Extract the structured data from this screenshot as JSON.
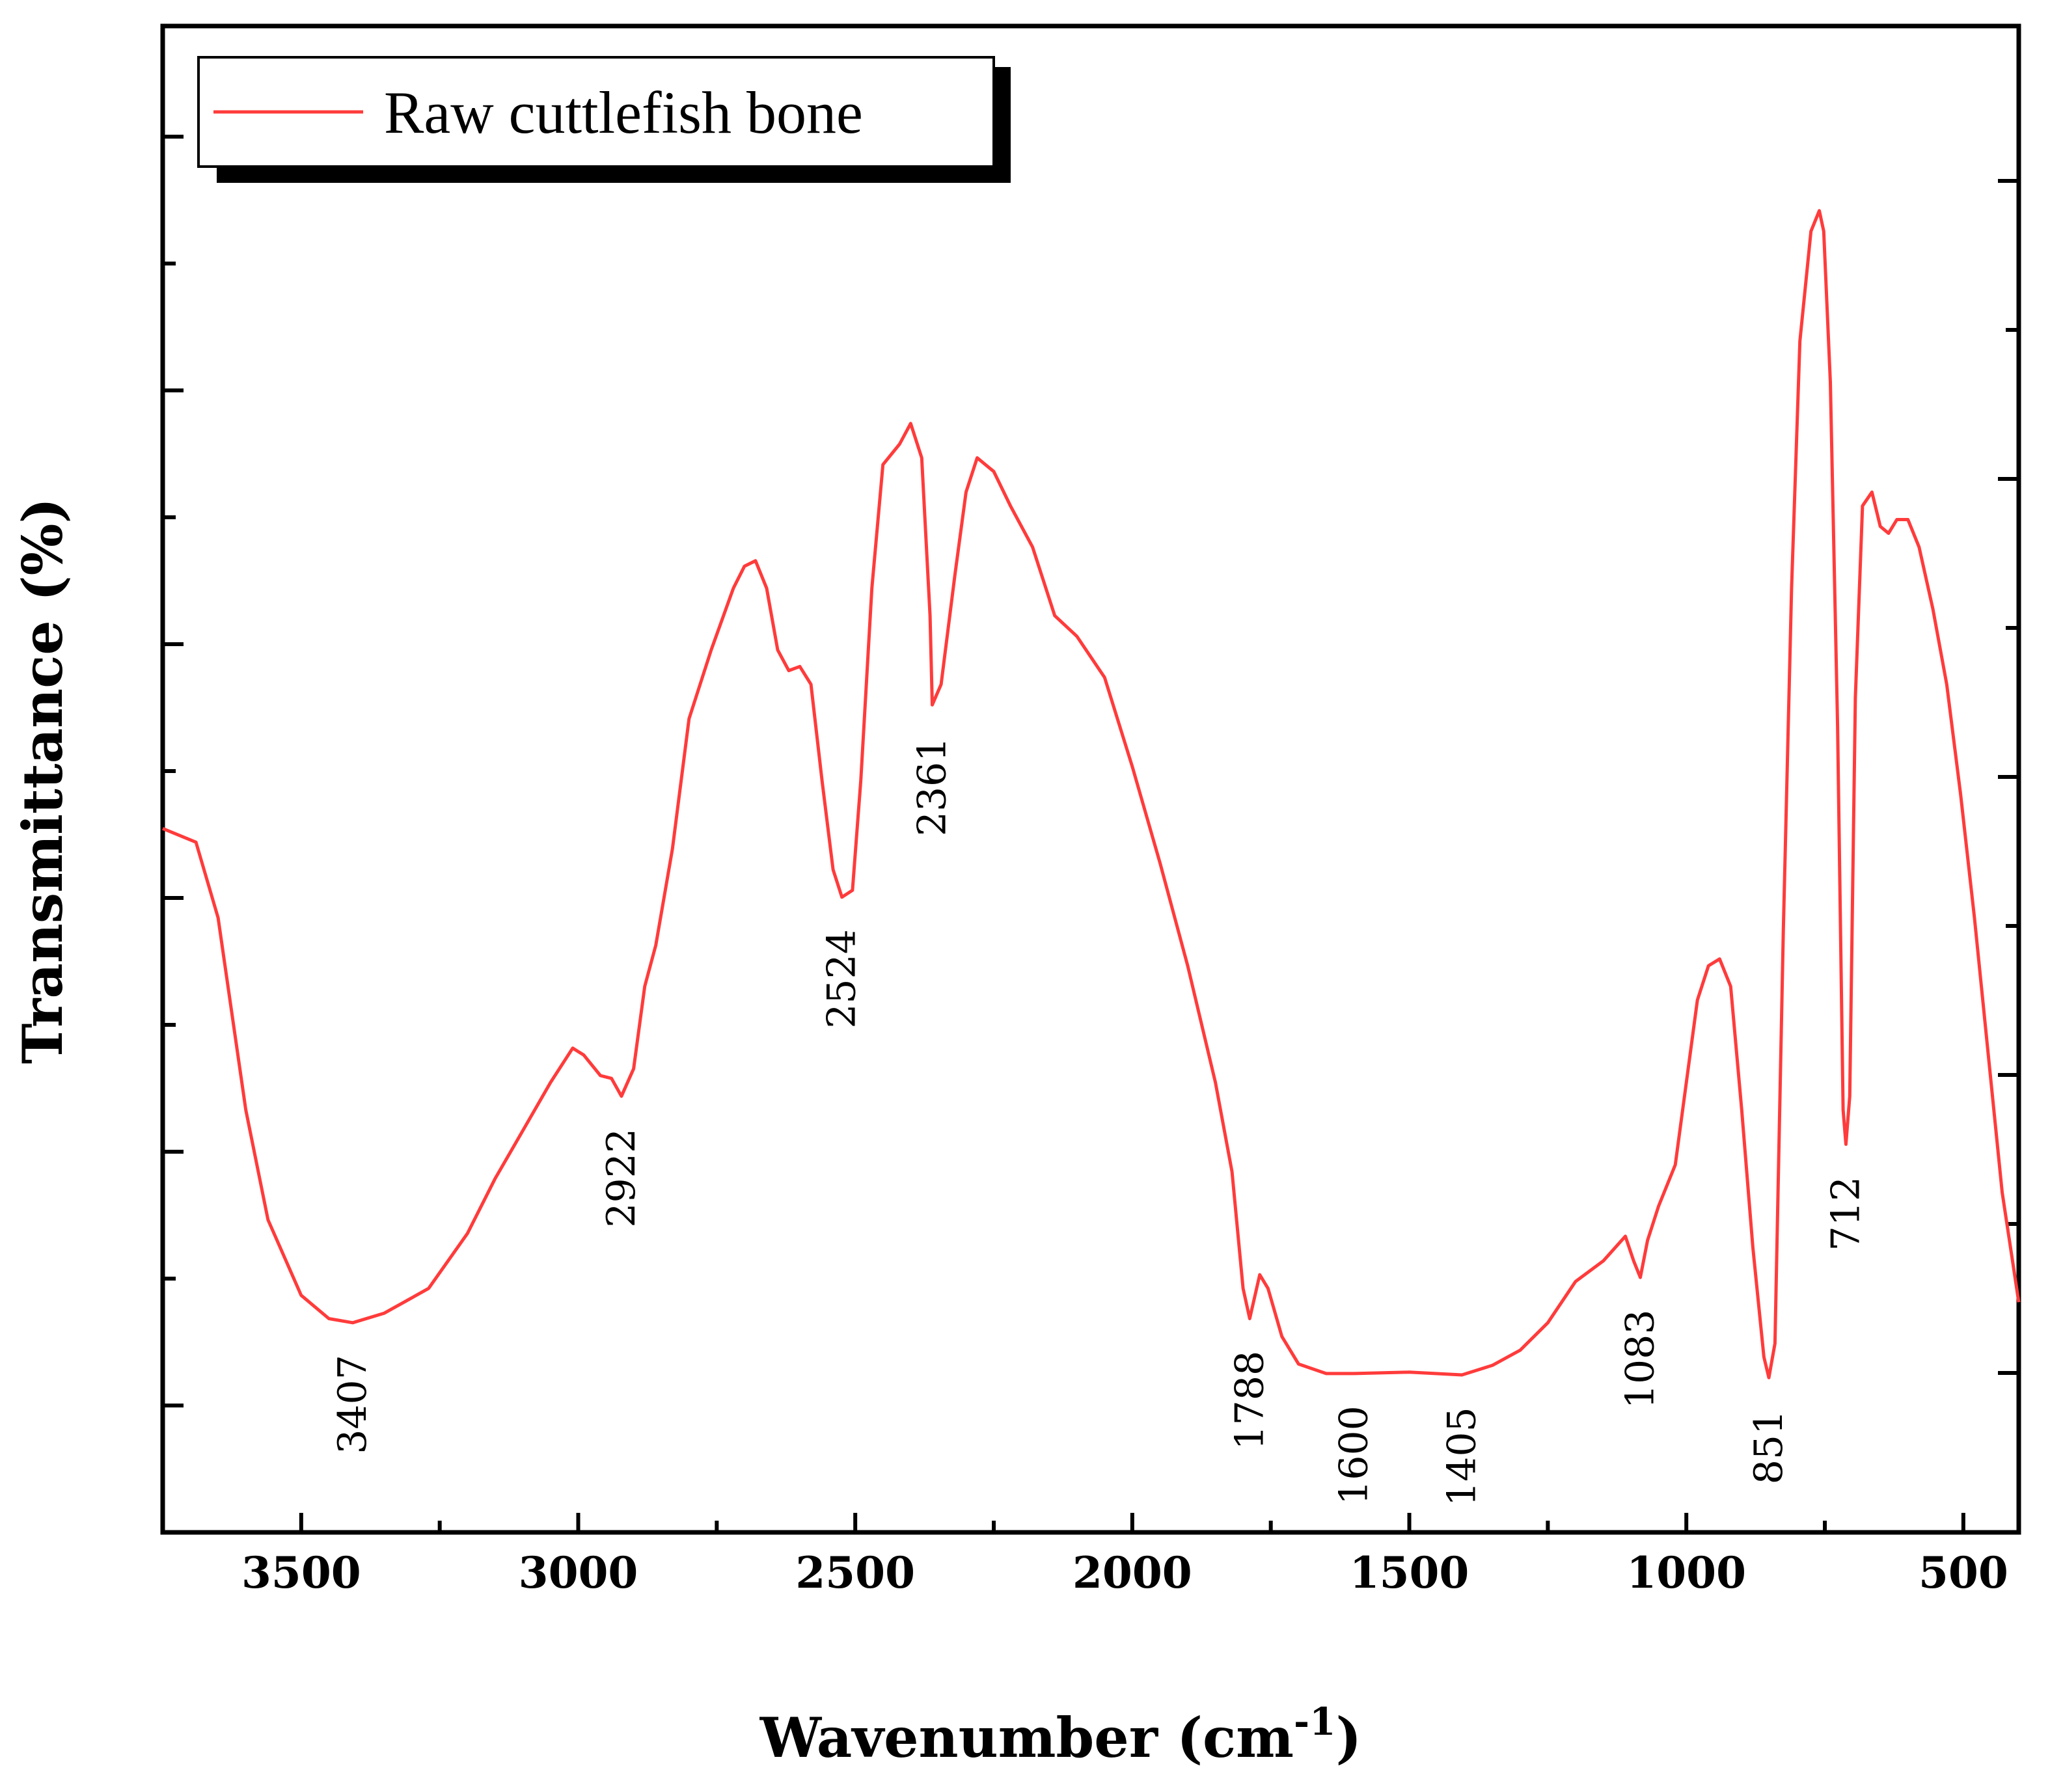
{
  "chart_data": {
    "type": "line",
    "title": "",
    "xlabel": "Wavenumber (cm",
    "xlabel_sup": "-1",
    "xlabel_close": ")",
    "ylabel": "Transmittance (%)",
    "xlim": [
      3750,
      400
    ],
    "ylim": [
      0,
      100
    ],
    "x_reversed": true,
    "grid": false,
    "legend_position": "top-left",
    "x_ticks": [
      {
        "value": 3500,
        "label": "3500"
      },
      {
        "value": 3000,
        "label": "3000"
      },
      {
        "value": 2500,
        "label": "2500"
      },
      {
        "value": 2000,
        "label": "2000"
      },
      {
        "value": 1500,
        "label": "1500"
      },
      {
        "value": 1000,
        "label": "1000"
      },
      {
        "value": 500,
        "label": "500"
      }
    ],
    "series": [
      {
        "name": "Raw cuttlefish bone",
        "color": "#ff3b3b",
        "points": [
          [
            3750,
            42.5
          ],
          [
            3690,
            41.5
          ],
          [
            3650,
            36
          ],
          [
            3600,
            22
          ],
          [
            3560,
            14
          ],
          [
            3500,
            8.5
          ],
          [
            3450,
            6.8
          ],
          [
            3407,
            6.5
          ],
          [
            3350,
            7.2
          ],
          [
            3270,
            9
          ],
          [
            3200,
            13
          ],
          [
            3150,
            17
          ],
          [
            3100,
            20.5
          ],
          [
            3050,
            24
          ],
          [
            3010,
            26.5
          ],
          [
            2990,
            26
          ],
          [
            2960,
            24.5
          ],
          [
            2940,
            24.3
          ],
          [
            2922,
            23
          ],
          [
            2900,
            25
          ],
          [
            2880,
            31
          ],
          [
            2860,
            34
          ],
          [
            2830,
            41
          ],
          [
            2800,
            50.5
          ],
          [
            2760,
            55.5
          ],
          [
            2720,
            60
          ],
          [
            2700,
            61.6
          ],
          [
            2680,
            62
          ],
          [
            2660,
            60
          ],
          [
            2640,
            55.5
          ],
          [
            2620,
            54
          ],
          [
            2600,
            54.3
          ],
          [
            2580,
            53
          ],
          [
            2560,
            46
          ],
          [
            2540,
            39.5
          ],
          [
            2524,
            37.5
          ],
          [
            2505,
            38
          ],
          [
            2490,
            46
          ],
          [
            2470,
            60
          ],
          [
            2450,
            69
          ],
          [
            2420,
            70.5
          ],
          [
            2400,
            72
          ],
          [
            2380,
            69.5
          ],
          [
            2365,
            58
          ],
          [
            2361,
            51.5
          ],
          [
            2345,
            53
          ],
          [
            2320,
            61
          ],
          [
            2300,
            67
          ],
          [
            2280,
            69.5
          ],
          [
            2250,
            68.5
          ],
          [
            2220,
            66
          ],
          [
            2180,
            63
          ],
          [
            2140,
            58
          ],
          [
            2100,
            56.5
          ],
          [
            2050,
            53.5
          ],
          [
            2000,
            47
          ],
          [
            1950,
            40
          ],
          [
            1900,
            32.5
          ],
          [
            1850,
            24
          ],
          [
            1820,
            17.5
          ],
          [
            1800,
            9
          ],
          [
            1788,
            6.8
          ],
          [
            1770,
            10
          ],
          [
            1755,
            9
          ],
          [
            1730,
            5.5
          ],
          [
            1700,
            3.5
          ],
          [
            1650,
            2.8
          ],
          [
            1600,
            2.8
          ],
          [
            1500,
            2.9
          ],
          [
            1405,
            2.7
          ],
          [
            1350,
            3.4
          ],
          [
            1300,
            4.5
          ],
          [
            1250,
            6.5
          ],
          [
            1200,
            9.5
          ],
          [
            1150,
            11
          ],
          [
            1110,
            12.8
          ],
          [
            1095,
            11
          ],
          [
            1083,
            9.8
          ],
          [
            1070,
            12.5
          ],
          [
            1050,
            15
          ],
          [
            1020,
            18
          ],
          [
            1000,
            24
          ],
          [
            980,
            30
          ],
          [
            960,
            32.5
          ],
          [
            940,
            33
          ],
          [
            920,
            31
          ],
          [
            900,
            22
          ],
          [
            880,
            12
          ],
          [
            860,
            4
          ],
          [
            851,
            2.5
          ],
          [
            840,
            5
          ],
          [
            825,
            35
          ],
          [
            810,
            60
          ],
          [
            795,
            78
          ],
          [
            775,
            86
          ],
          [
            760,
            87.5
          ],
          [
            752,
            86
          ],
          [
            740,
            75
          ],
          [
            727,
            50
          ],
          [
            717,
            22
          ],
          [
            712,
            19.5
          ],
          [
            705,
            23
          ],
          [
            695,
            52
          ],
          [
            682,
            66
          ],
          [
            665,
            67
          ],
          [
            650,
            64.5
          ],
          [
            635,
            64
          ],
          [
            620,
            65
          ],
          [
            600,
            65
          ],
          [
            580,
            63
          ],
          [
            555,
            58.5
          ],
          [
            530,
            53
          ],
          [
            505,
            45
          ],
          [
            480,
            36
          ],
          [
            455,
            26
          ],
          [
            430,
            16
          ],
          [
            400,
            8
          ]
        ]
      }
    ],
    "annotations": [
      {
        "label": "3407",
        "x": 3407,
        "y": 6.5
      },
      {
        "label": "2922",
        "x": 2922,
        "y": 23
      },
      {
        "label": "2524",
        "x": 2524,
        "y": 37.5
      },
      {
        "label": "2361",
        "x": 2361,
        "y": 51.5
      },
      {
        "label": "1788",
        "x": 1788,
        "y": 6.8
      },
      {
        "label": "1600",
        "x": 1600,
        "y": 2.8
      },
      {
        "label": "1405",
        "x": 1405,
        "y": 2.7
      },
      {
        "label": "1083",
        "x": 1083,
        "y": 9.8
      },
      {
        "label": "851",
        "x": 851,
        "y": 2.5
      },
      {
        "label": "712",
        "x": 712,
        "y": 19.5
      }
    ]
  }
}
